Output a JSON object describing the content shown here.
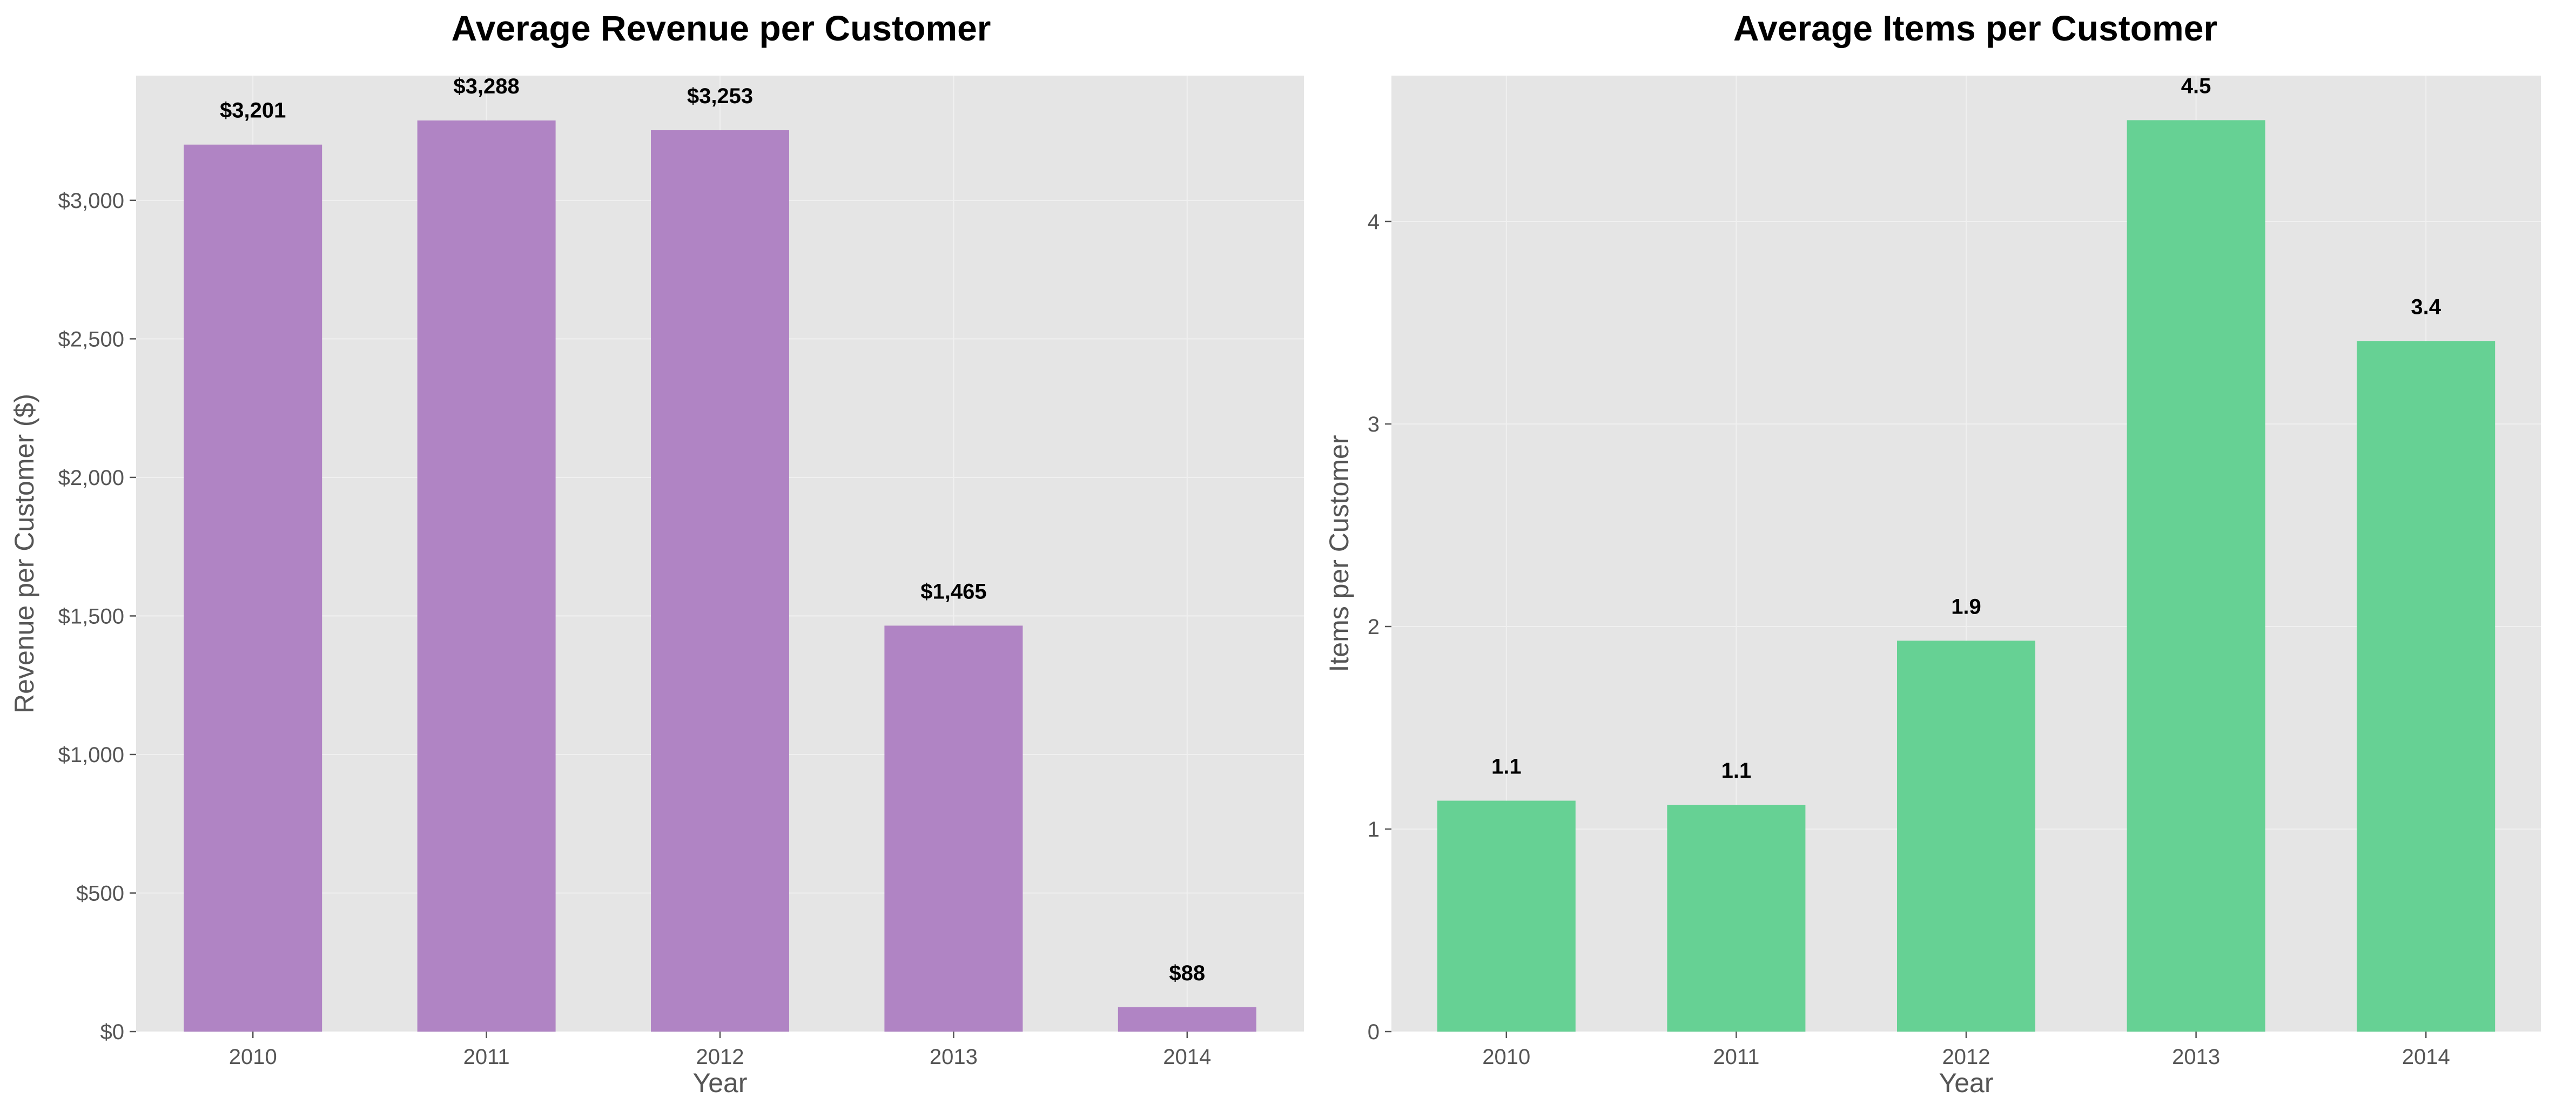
{
  "chart_data": [
    {
      "type": "bar",
      "title": "Average Revenue per Customer",
      "xlabel": "Year",
      "ylabel": "Revenue per Customer ($)",
      "categories": [
        "2010",
        "2011",
        "2012",
        "2013",
        "2014"
      ],
      "values": [
        3201,
        3288,
        3253,
        1465,
        88
      ],
      "data_labels": [
        "$3,201",
        "$3,288",
        "$3,253",
        "$1,465",
        "$88"
      ],
      "ylim": [
        0,
        3450
      ],
      "yticks": [
        0,
        500,
        1000,
        1500,
        2000,
        2500,
        3000
      ],
      "ytick_labels": [
        "$0",
        "$500",
        "$1,000",
        "$1,500",
        "$2,000",
        "$2,500",
        "$3,000"
      ],
      "bar_color": "#b084c4",
      "grid": true,
      "legend": "none"
    },
    {
      "type": "bar",
      "title": "Average Items per Customer",
      "xlabel": "Year",
      "ylabel": "Items per Customer",
      "categories": [
        "2010",
        "2011",
        "2012",
        "2013",
        "2014"
      ],
      "values": [
        1.14,
        1.12,
        1.93,
        4.5,
        3.41
      ],
      "data_labels": [
        "1.1",
        "1.1",
        "1.9",
        "4.5",
        "3.4"
      ],
      "ylim": [
        0,
        4.72
      ],
      "yticks": [
        0,
        1,
        2,
        3,
        4
      ],
      "ytick_labels": [
        "0",
        "1",
        "2",
        "3",
        "4"
      ],
      "bar_color": "#66d194",
      "grid": true,
      "legend": "none"
    }
  ]
}
